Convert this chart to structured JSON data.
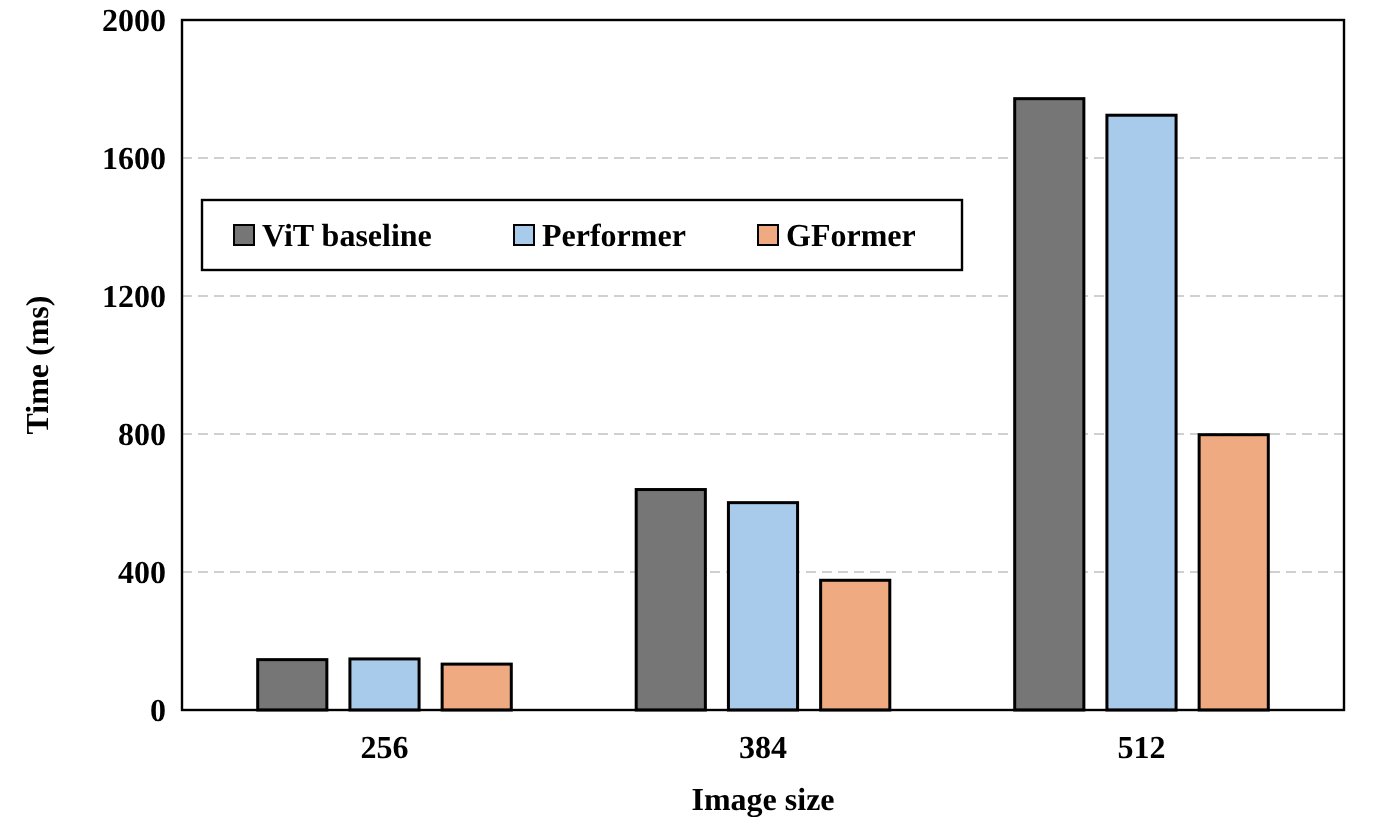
{
  "chart_data": {
    "type": "bar",
    "xlabel": "Image size",
    "ylabel": "Time (ms)",
    "categories": [
      "256",
      "384",
      "512"
    ],
    "series": [
      {
        "name": "ViT baseline",
        "color": "#767676",
        "values": [
          146,
          639,
          1772
        ]
      },
      {
        "name": "Performer",
        "color": "#a9cbeb",
        "values": [
          148,
          601,
          1724
        ]
      },
      {
        "name": "GFormer",
        "color": "#f0aa82",
        "values": [
          133,
          376,
          798
        ]
      }
    ],
    "ylim": [
      0,
      2000
    ],
    "yticks": [
      0,
      400,
      800,
      1200,
      1600,
      2000
    ],
    "grid": "y",
    "legend": "top left"
  }
}
